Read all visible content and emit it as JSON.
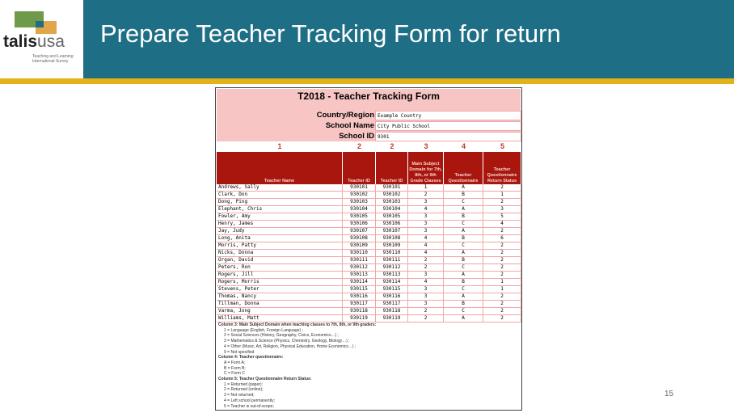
{
  "header": {
    "title": "Prepare Teacher Tracking Form for return",
    "logo_text": "talisusa",
    "logo_subtitle": "Teaching and Learning International Survey"
  },
  "colors": {
    "header": "#1e6f86",
    "accent": "#e3b219",
    "table_header": "#a8160d",
    "pink": "#f7c6c4"
  },
  "form": {
    "title": "T2018  - Teacher Tracking Form",
    "fields": [
      {
        "label": "Country/Region",
        "value": "Example Country"
      },
      {
        "label": "School Name",
        "value": "City Public School"
      },
      {
        "label": "School ID",
        "value": "9301"
      }
    ],
    "column_numbers": [
      "1",
      "2",
      "2",
      "3",
      "4",
      "5"
    ],
    "column_headers": [
      "Teacher Name",
      "Teacher ID",
      "Teacher ID",
      "Main Subject Domain for 7th, 8th, or 9th Grade Classes",
      "Teacher Questionnaire",
      "Teacher Questionnaire Return Status"
    ],
    "rows": [
      [
        "Andrews, Sally",
        "930101",
        "930101",
        "1",
        "A",
        "2"
      ],
      [
        "Clark, Don",
        "930102",
        "930102",
        "2",
        "B",
        "1"
      ],
      [
        "Dong, Ping",
        "930103",
        "930103",
        "3",
        "C",
        "2"
      ],
      [
        "Elephant, Chris",
        "930104",
        "930104",
        "4",
        "A",
        "3"
      ],
      [
        "Fowler, Amy",
        "930105",
        "930105",
        "3",
        "B",
        "5"
      ],
      [
        "Henry, James",
        "930106",
        "930106",
        "3",
        "C",
        "4"
      ],
      [
        "Jay, Judy",
        "930107",
        "930107",
        "3",
        "A",
        "2"
      ],
      [
        "Long, Anita",
        "930108",
        "930108",
        "4",
        "B",
        "6"
      ],
      [
        "Morris, Patty",
        "930109",
        "930109",
        "4",
        "C",
        "2"
      ],
      [
        "Nicks, Donna",
        "930110",
        "930110",
        "4",
        "A",
        "2"
      ],
      [
        "Organ, David",
        "930111",
        "930111",
        "2",
        "B",
        "2"
      ],
      [
        "Peters, Ron",
        "930112",
        "930112",
        "2",
        "C",
        "2"
      ],
      [
        "Rogers, Jill",
        "930113",
        "930113",
        "3",
        "A",
        "2"
      ],
      [
        "Rogers, Morris",
        "930114",
        "930114",
        "4",
        "B",
        "1"
      ],
      [
        "Stevens, Peter",
        "930115",
        "930115",
        "3",
        "C",
        "1"
      ],
      [
        "Thomas, Nancy",
        "930116",
        "930116",
        "3",
        "A",
        "2"
      ],
      [
        "Tillman, Donna",
        "930117",
        "930117",
        "3",
        "B",
        "2"
      ],
      [
        "Varma, Jong",
        "930118",
        "930118",
        "2",
        "C",
        "2"
      ],
      [
        "Williams, Matt",
        "930119",
        "930119",
        "2",
        "A",
        "2"
      ]
    ],
    "legend": [
      {
        "heading": "Column 3: Main Subject Domain when teaching classes to 7th, 8th, or 9th graders:",
        "items": [
          "1 = Language (English, Foreign Language) ;",
          "2 = Social Sciences (History, Geography, Civics, Economics…) ;",
          "3 = Mathematics & Science (Physics, Chemistry, Geology, Biology…) ;",
          "4 = Other (Music, Art, Religion, Physical Education, Home Economics…) ;",
          "9 = Not specified"
        ]
      },
      {
        "heading": "Column 4: Teacher questionnaire:",
        "items": [
          "A = Form A;",
          "B = Form B;",
          "C = Form C"
        ]
      },
      {
        "heading": "Column 5: Teacher Questionnaire Return Status:",
        "items": [
          "1 = Returned (paper);",
          "2 = Returned (online);",
          "3 = Not returned;",
          "4 = Left school permanently;",
          "5 = Teacher is out-of-scope;"
        ]
      }
    ]
  },
  "page_number": "15"
}
